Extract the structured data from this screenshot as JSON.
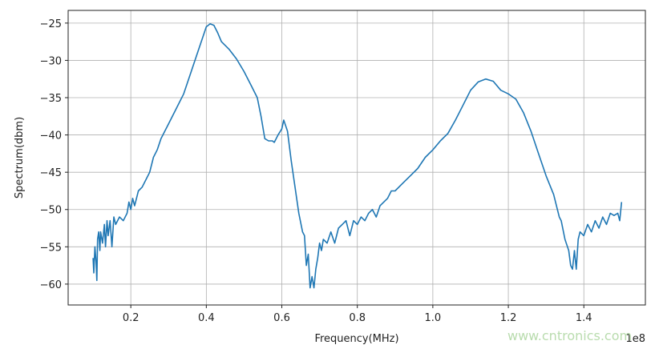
{
  "chart_data": {
    "type": "line",
    "title": "",
    "xlabel": "Frequency(MHz)",
    "ylabel": "Spectrum(dbm)",
    "x_offset_text": "1e8",
    "xlim": [
      0.034,
      1.563
    ],
    "ylim": [
      -62.8,
      -23.3
    ],
    "xticks": [
      0.2,
      0.4,
      0.6,
      0.8,
      1.0,
      1.2,
      1.4
    ],
    "xtick_labels": [
      "0.2",
      "0.4",
      "0.6",
      "0.8",
      "1.0",
      "1.2",
      "1.4"
    ],
    "yticks": [
      -25,
      -30,
      -35,
      -40,
      -45,
      -50,
      -55,
      -60
    ],
    "ytick_labels": [
      "−25",
      "−30",
      "−35",
      "−40",
      "−45",
      "−50",
      "−55",
      "−60"
    ],
    "grid": true,
    "line_color": "#1f77b4",
    "series": [
      {
        "x": [
          0.1,
          0.102,
          0.105,
          0.108,
          0.11,
          0.112,
          0.115,
          0.118,
          0.12,
          0.125,
          0.13,
          0.133,
          0.137,
          0.14,
          0.145,
          0.15,
          0.155,
          0.16,
          0.17,
          0.18,
          0.19,
          0.195,
          0.2,
          0.205,
          0.21,
          0.22,
          0.23,
          0.24,
          0.25,
          0.26,
          0.27,
          0.28,
          0.3,
          0.32,
          0.34,
          0.36,
          0.38,
          0.39,
          0.4,
          0.41,
          0.42,
          0.43,
          0.44,
          0.46,
          0.48,
          0.5,
          0.52,
          0.535,
          0.545,
          0.555,
          0.565,
          0.575,
          0.58,
          0.59,
          0.6,
          0.605,
          0.615,
          0.625,
          0.635,
          0.645,
          0.655,
          0.66,
          0.665,
          0.67,
          0.675,
          0.68,
          0.685,
          0.69,
          0.695,
          0.7,
          0.705,
          0.71,
          0.72,
          0.73,
          0.74,
          0.75,
          0.76,
          0.77,
          0.78,
          0.79,
          0.8,
          0.81,
          0.82,
          0.83,
          0.84,
          0.85,
          0.86,
          0.87,
          0.88,
          0.89,
          0.9,
          0.92,
          0.94,
          0.96,
          0.98,
          1.0,
          1.02,
          1.04,
          1.06,
          1.08,
          1.1,
          1.12,
          1.14,
          1.16,
          1.18,
          1.2,
          1.22,
          1.24,
          1.26,
          1.28,
          1.3,
          1.32,
          1.335,
          1.34,
          1.35,
          1.36,
          1.365,
          1.37,
          1.375,
          1.38,
          1.385,
          1.39,
          1.4,
          1.41,
          1.42,
          1.43,
          1.44,
          1.45,
          1.46,
          1.47,
          1.48,
          1.49,
          1.495,
          1.5
        ],
        "y": [
          -56.5,
          -58.5,
          -55,
          -57,
          -59.5,
          -54,
          -53,
          -55.5,
          -53,
          -54.5,
          -52,
          -55,
          -51.5,
          -53.5,
          -51.5,
          -55,
          -51,
          -52,
          -51,
          -51.5,
          -50.5,
          -49,
          -50,
          -48.5,
          -49.5,
          -47.5,
          -47,
          -46,
          -45,
          -43,
          -42,
          -40.5,
          -38.5,
          -36.5,
          -34.5,
          -31.5,
          -28.5,
          -27,
          -25.5,
          -25.1,
          -25.3,
          -26.3,
          -27.5,
          -28.5,
          -29.8,
          -31.5,
          -33.5,
          -35,
          -37.5,
          -40.5,
          -40.8,
          -40.8,
          -41,
          -40,
          -39.2,
          -38,
          -39.5,
          -43.5,
          -47,
          -50.5,
          -53,
          -53.5,
          -57.5,
          -56,
          -60.5,
          -59,
          -60.5,
          -58,
          -56.5,
          -54.5,
          -55.5,
          -54,
          -54.5,
          -53,
          -54.5,
          -52.5,
          -52,
          -51.5,
          -53.5,
          -51.5,
          -52,
          -51,
          -51.5,
          -50.5,
          -50,
          -51,
          -49.5,
          -49,
          -48.5,
          -47.5,
          -47.5,
          -46.5,
          -45.5,
          -44.5,
          -43,
          -42,
          -40.8,
          -39.8,
          -38,
          -36,
          -34,
          -32.9,
          -32.5,
          -32.8,
          -34,
          -34.5,
          -35.2,
          -37,
          -39.5,
          -42.5,
          -45.5,
          -48,
          -51,
          -51.5,
          -54,
          -55.5,
          -57.5,
          -58,
          -55.5,
          -58,
          -54,
          -53,
          -53.5,
          -52,
          -53,
          -51.5,
          -52.5,
          -51,
          -52,
          -50.5,
          -50.8,
          -50.5,
          -51.5,
          -49
        ]
      }
    ]
  },
  "watermark": "www.cntronics.com"
}
